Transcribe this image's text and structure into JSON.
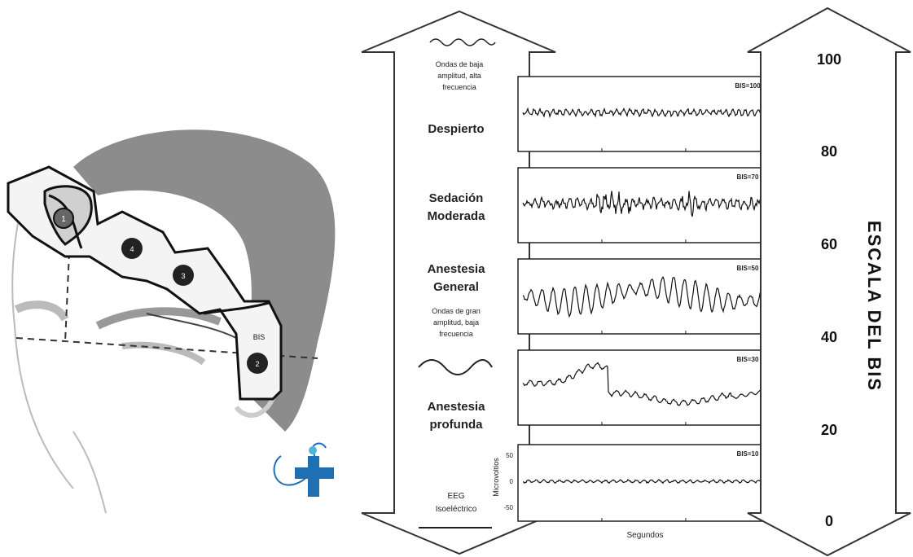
{
  "electrode_labels": [
    "1",
    "4",
    "3",
    "2"
  ],
  "sensor_label": "BIS",
  "left_arrow": {
    "wave_high_freq_caption": [
      "Ondas de baja",
      "amplitud, alta",
      "frecuencia"
    ],
    "wave_low_freq_caption": [
      "Ondas de gran",
      "amplitud, baja",
      "frecuencia"
    ]
  },
  "states": [
    {
      "label_lines": [
        "Despierto"
      ],
      "bis": "BIS=100"
    },
    {
      "label_lines": [
        "Sedación",
        "Moderada"
      ],
      "bis": "BIS=70"
    },
    {
      "label_lines": [
        "Anestesia",
        "General"
      ],
      "bis": "BIS=50"
    },
    {
      "label_lines": [
        "Anestesia",
        "profunda"
      ],
      "bis": "BIS=30"
    },
    {
      "label_lines": [
        "EEG",
        "Isoeléctrico"
      ],
      "bis": "BIS=10"
    }
  ],
  "y_axis_label": "Microvoltios",
  "y_ticks": [
    "50",
    "0",
    "-50"
  ],
  "x_axis_label": "Segundos",
  "scale": {
    "title": "ESCALA DEL BIS",
    "ticks": [
      "100",
      "80",
      "60",
      "40",
      "20",
      "0"
    ]
  },
  "colors": {
    "ink": "#111111",
    "gray_hair": "#8c8c8c",
    "light_gray": "#bdbdbd",
    "logo_blue": "#1f6fb3",
    "logo_cyan": "#4fb5d6"
  }
}
